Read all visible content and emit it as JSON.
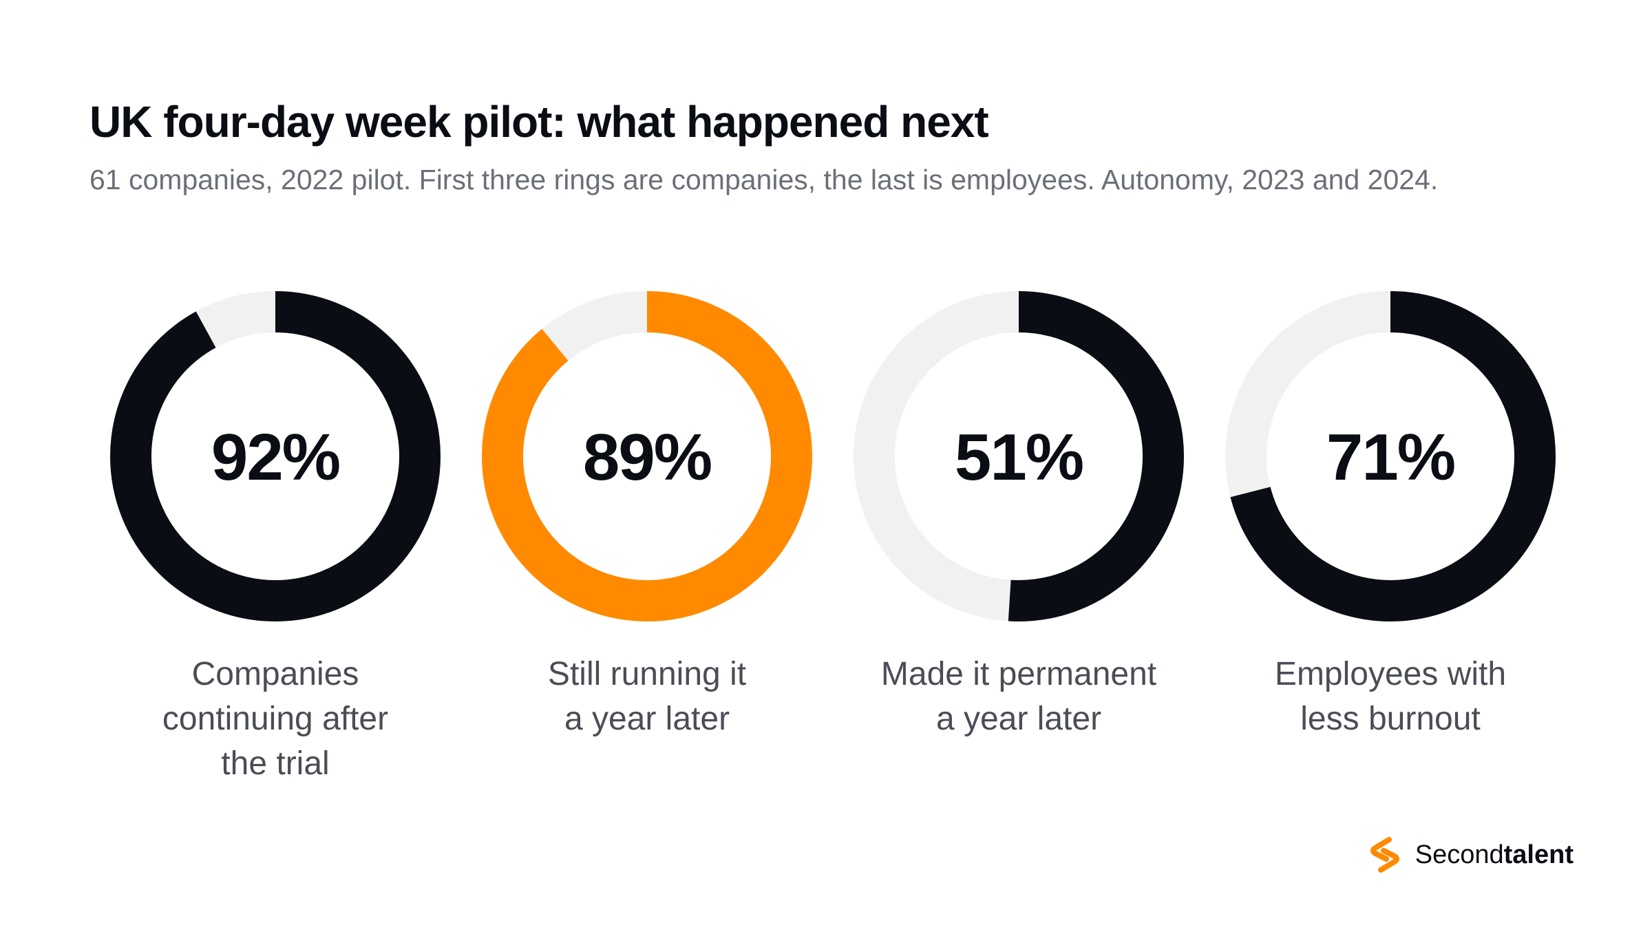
{
  "header": {
    "title": "UK four-day week pilot: what happened next",
    "subtitle": "61 companies, 2022 pilot. First three rings are companies, the last is employees. Autonomy, 2023 and 2024."
  },
  "chart_data": {
    "type": "pie",
    "variant": "donut",
    "rings": [
      {
        "value": 92,
        "value_label": "92%",
        "label_lines": [
          "Companies",
          "continuing after",
          "the trial"
        ],
        "color": "#0b0d14"
      },
      {
        "value": 89,
        "value_label": "89%",
        "label_lines": [
          "Still running it",
          "a year later"
        ],
        "color": "#ff8a00"
      },
      {
        "value": 51,
        "value_label": "51%",
        "label_lines": [
          "Made it permanent",
          "a year later"
        ],
        "color": "#0b0d14"
      },
      {
        "value": 71,
        "value_label": "71%",
        "label_lines": [
          "Employees with",
          "less burnout"
        ],
        "color": "#0b0d14"
      }
    ],
    "track_color": "#f0f1f0",
    "max": 100
  },
  "brand": {
    "name_regular": "Second",
    "name_bold": "talent",
    "logo_icon": "s-link-icon",
    "logo_color": "#ff8a00"
  }
}
